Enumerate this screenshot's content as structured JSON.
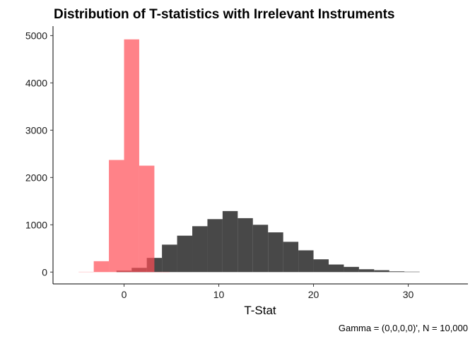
{
  "chart_data": {
    "type": "bar",
    "subtype": "histogram",
    "title": "Distribution of T-statistics with Irrelevant Instruments",
    "xlabel": "T-Stat",
    "ylabel": "",
    "caption": "Gamma = (0,0,0,0)', N = 10,000",
    "xlim": [
      -7.5,
      36.3
    ],
    "ylim": [
      -250,
      5200
    ],
    "x_ticks": [
      0,
      10,
      20,
      30
    ],
    "y_ticks": [
      0,
      1000,
      2000,
      3000,
      4000,
      5000
    ],
    "bin_width": 1.6,
    "grid": false,
    "legend": "none",
    "series": [
      {
        "color": "#1a1a1a",
        "opacity": 0.8,
        "bins": [
          {
            "x0": -0.8,
            "x1": 0.8,
            "y": 30
          },
          {
            "x0": 0.8,
            "x1": 2.4,
            "y": 90
          },
          {
            "x0": 2.4,
            "x1": 4.0,
            "y": 300
          },
          {
            "x0": 4.0,
            "x1": 5.6,
            "y": 580
          },
          {
            "x0": 5.6,
            "x1": 7.2,
            "y": 770
          },
          {
            "x0": 7.2,
            "x1": 8.8,
            "y": 970
          },
          {
            "x0": 8.8,
            "x1": 10.4,
            "y": 1120
          },
          {
            "x0": 10.4,
            "x1": 12.0,
            "y": 1290
          },
          {
            "x0": 12.0,
            "x1": 13.6,
            "y": 1140
          },
          {
            "x0": 13.6,
            "x1": 15.2,
            "y": 1000
          },
          {
            "x0": 15.2,
            "x1": 16.8,
            "y": 840
          },
          {
            "x0": 16.8,
            "x1": 18.4,
            "y": 640
          },
          {
            "x0": 18.4,
            "x1": 20.0,
            "y": 460
          },
          {
            "x0": 20.0,
            "x1": 21.6,
            "y": 270
          },
          {
            "x0": 21.6,
            "x1": 23.2,
            "y": 160
          },
          {
            "x0": 23.2,
            "x1": 24.8,
            "y": 110
          },
          {
            "x0": 24.8,
            "x1": 26.4,
            "y": 60
          },
          {
            "x0": 26.4,
            "x1": 28.0,
            "y": 40
          },
          {
            "x0": 28.0,
            "x1": 29.6,
            "y": 15
          },
          {
            "x0": 29.6,
            "x1": 31.2,
            "y": 8
          }
        ]
      },
      {
        "color": "#ff4d55",
        "opacity": 0.7,
        "bins": [
          {
            "x0": -4.8,
            "x1": -3.2,
            "y": 5
          },
          {
            "x0": -3.2,
            "x1": -1.6,
            "y": 230
          },
          {
            "x0": -1.6,
            "x1": 0.0,
            "y": 2370
          },
          {
            "x0": 0.0,
            "x1": 1.6,
            "y": 4920
          },
          {
            "x0": 1.6,
            "x1": 3.2,
            "y": 2250
          },
          {
            "x0": 3.2,
            "x1": 4.8,
            "y": 5
          }
        ]
      }
    ]
  }
}
